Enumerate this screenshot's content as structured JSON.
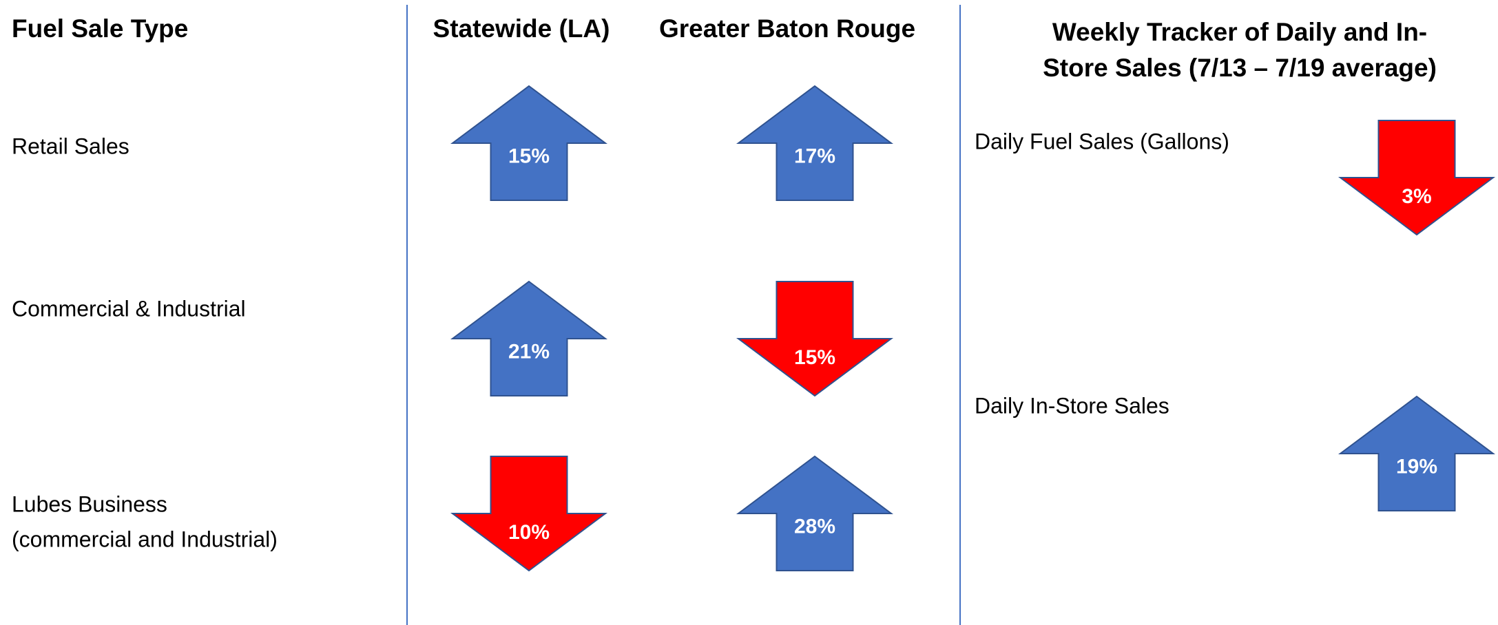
{
  "columns": {
    "fuel_sale_type": "Fuel Sale Type",
    "statewide": "Statewide (LA)",
    "baton_rouge": "Greater Baton Rouge"
  },
  "rows": [
    {
      "label": [
        "Retail Sales"
      ],
      "statewide": {
        "text": "15%",
        "direction": "up"
      },
      "baton_rouge": {
        "text": "17%",
        "direction": "up"
      }
    },
    {
      "label": [
        "Commercial & Industrial"
      ],
      "statewide": {
        "text": "21%",
        "direction": "up"
      },
      "baton_rouge": {
        "text": "15%",
        "direction": "down"
      }
    },
    {
      "label": [
        "Lubes Business",
        "(commercial and Industrial)"
      ],
      "statewide": {
        "text": "10%",
        "direction": "down"
      },
      "baton_rouge": {
        "text": "28%",
        "direction": "up"
      }
    }
  ],
  "tracker": {
    "title": [
      "Weekly Tracker of Daily and In-",
      "Store Sales (7/13 – 7/19 average)"
    ],
    "items": [
      {
        "label": "Daily Fuel Sales (Gallons)",
        "text": "3%",
        "direction": "down"
      },
      {
        "label": "Daily In-Store Sales",
        "text": "19%",
        "direction": "up"
      }
    ]
  },
  "colors": {
    "up": "#4472c4",
    "down": "#ff0000"
  }
}
